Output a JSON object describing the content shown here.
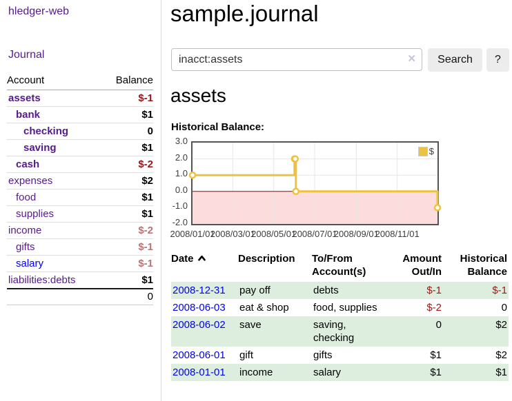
{
  "app": {
    "brand": "hledger-web",
    "title": "sample.journal"
  },
  "sidebar": {
    "journal_link": "Journal",
    "accounts": {
      "headers": {
        "account": "Account",
        "balance": "Balance"
      },
      "rows": [
        {
          "name": "assets",
          "balance": "$-1",
          "indent": 0,
          "bold": true,
          "negative": true
        },
        {
          "name": "bank",
          "balance": "$1",
          "indent": 1,
          "bold": true,
          "negative": false
        },
        {
          "name": "checking",
          "balance": "0",
          "indent": 2,
          "bold": true,
          "negative": false
        },
        {
          "name": "saving",
          "balance": "$1",
          "indent": 2,
          "bold": true,
          "negative": false
        },
        {
          "name": "cash",
          "balance": "$-2",
          "indent": 1,
          "bold": true,
          "negative": true
        },
        {
          "name": "expenses",
          "balance": "$2",
          "indent": 0,
          "bold": false,
          "negative": false
        },
        {
          "name": "food",
          "balance": "$1",
          "indent": 1,
          "bold": false,
          "negative": false
        },
        {
          "name": "supplies",
          "balance": "$1",
          "indent": 1,
          "bold": false,
          "negative": false
        },
        {
          "name": "income",
          "balance": "$-2",
          "indent": 0,
          "bold": false,
          "negative": true
        },
        {
          "name": "gifts",
          "balance": "$-1",
          "indent": 1,
          "bold": false,
          "negative": true
        },
        {
          "name": "salary",
          "balance": "$-1",
          "indent": 1,
          "bold": false,
          "negative": true,
          "unvisited": true
        },
        {
          "name": "liabilities:debts",
          "balance": "$1",
          "indent": 0,
          "bold": false,
          "negative": false
        }
      ],
      "total": "0"
    }
  },
  "search": {
    "value": "inacct:assets",
    "clear_icon": "✕",
    "button": "Search",
    "help": "?"
  },
  "account_page": {
    "heading": "assets",
    "chart_title": "Historical Balance:"
  },
  "chart_data": {
    "type": "line",
    "title": "Historical Balance of assets",
    "step": true,
    "xlim": [
      "2008-01-01",
      "2008-12-31"
    ],
    "ylim": [
      -2,
      3
    ],
    "grid": true,
    "legend_position": "top-right",
    "series": [
      {
        "name": "$",
        "color": "#edc240",
        "points": [
          {
            "date": "2008-01-01",
            "value": 1
          },
          {
            "date": "2008-06-01",
            "value": 2
          },
          {
            "date": "2008-06-02",
            "value": 2
          },
          {
            "date": "2008-06-03",
            "value": 0
          },
          {
            "date": "2008-12-31",
            "value": -1
          }
        ]
      }
    ],
    "y_ticks": [
      {
        "label": "3.0",
        "value": 3
      },
      {
        "label": "2.0",
        "value": 2
      },
      {
        "label": "1.0",
        "value": 1
      },
      {
        "label": "0.0",
        "value": 0
      },
      {
        "label": "-1.0",
        "value": -1
      },
      {
        "label": "-2.0",
        "value": -2
      }
    ],
    "x_ticks": [
      {
        "label": "2008/01/01",
        "date": "2008-01-01"
      },
      {
        "label": "2008/03/01",
        "date": "2008-03-01"
      },
      {
        "label": "2008/05/01",
        "date": "2008-05-01"
      },
      {
        "label": "2008/07/01",
        "date": "2008-07-01"
      },
      {
        "label": "2008/09/01",
        "date": "2008-09-01"
      },
      {
        "label": "2008/11/01",
        "date": "2008-11-01"
      }
    ],
    "negative_region_color": "#fcdcdc",
    "zero_line_color": "#a40000",
    "gridline_color": "#e6e6e6"
  },
  "register": {
    "headers": {
      "date": "Date",
      "description": "Description",
      "accounts": "To/From Account(s)",
      "amount": "Amount Out/In",
      "balance": "Historical Balance"
    },
    "rows": [
      {
        "date": "2008-12-31",
        "description": "pay off",
        "accounts": "debts",
        "amount": "$-1",
        "amount_negative": true,
        "balance": "$-1",
        "balance_negative": true
      },
      {
        "date": "2008-06-03",
        "description": "eat & shop",
        "accounts": "food, supplies",
        "amount": "$-2",
        "amount_negative": true,
        "balance": "0",
        "balance_negative": false
      },
      {
        "date": "2008-06-02",
        "description": "save",
        "accounts": "saving, checking",
        "amount": "0",
        "amount_negative": false,
        "balance": "$2",
        "balance_negative": false
      },
      {
        "date": "2008-06-01",
        "description": "gift",
        "accounts": "gifts",
        "amount": "$1",
        "amount_negative": false,
        "balance": "$2",
        "balance_negative": false
      },
      {
        "date": "2008-01-01",
        "description": "income",
        "accounts": "salary",
        "amount": "$1",
        "amount_negative": false,
        "balance": "$1",
        "balance_negative": false
      }
    ]
  },
  "colors": {
    "link_visited": "#551a8b",
    "link_unvisited": "#0000ee",
    "negative_strong": "#9c1616",
    "negative_soft": "#bb7474",
    "row_highlight": "#deeede",
    "chart_series": "#edc240",
    "chart_negative_bg": "#fcdcdc",
    "chart_zero_line": "#a40000"
  }
}
